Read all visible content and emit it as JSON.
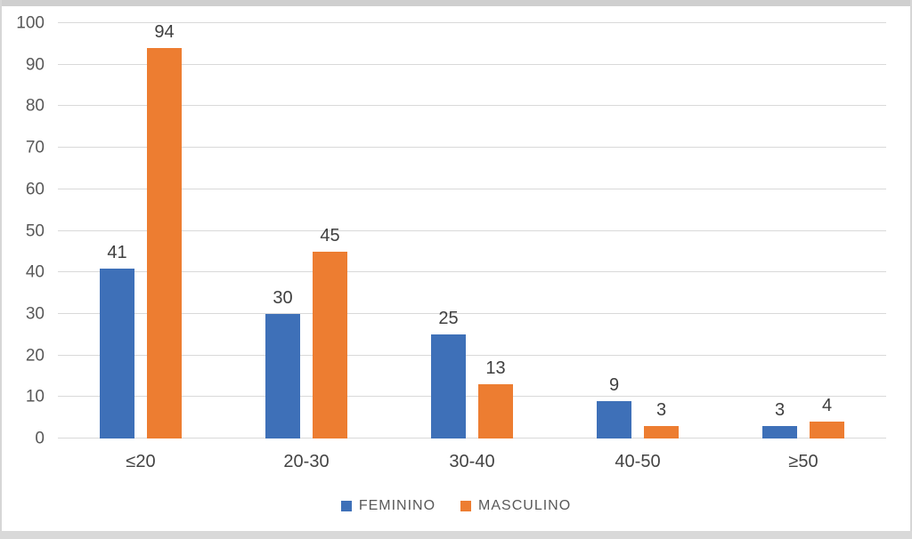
{
  "colors": {
    "feminino": "#3e70b8",
    "masculino": "#ed7d31",
    "gridline": "#d9d9d9",
    "axis_text": "#595959",
    "label_text": "#3f3f3f",
    "frame_top": "#cfcfcf",
    "frame_bottom": "#d9d9d9",
    "background": "#ffffff"
  },
  "chart_data": {
    "type": "bar",
    "title": "",
    "xlabel": "",
    "ylabel": "",
    "categories": [
      "≤20",
      "20-30",
      "30-40",
      "40-50",
      "≥50"
    ],
    "series": [
      {
        "name": "FEMININO",
        "color": "#3e70b8",
        "values": [
          41,
          30,
          25,
          9,
          3
        ]
      },
      {
        "name": "MASCULINO",
        "color": "#ed7d31",
        "values": [
          94,
          45,
          13,
          3,
          4
        ]
      }
    ],
    "data_labels": [
      [
        "41",
        "30",
        "25",
        "9",
        "3"
      ],
      [
        "94",
        "45",
        "13",
        "3",
        "4"
      ]
    ],
    "ylim": [
      0,
      100
    ],
    "yticks": [
      "0",
      "10",
      "20",
      "30",
      "40",
      "50",
      "60",
      "70",
      "80",
      "90",
      "100"
    ],
    "grid": true,
    "legend_position": "bottom"
  }
}
